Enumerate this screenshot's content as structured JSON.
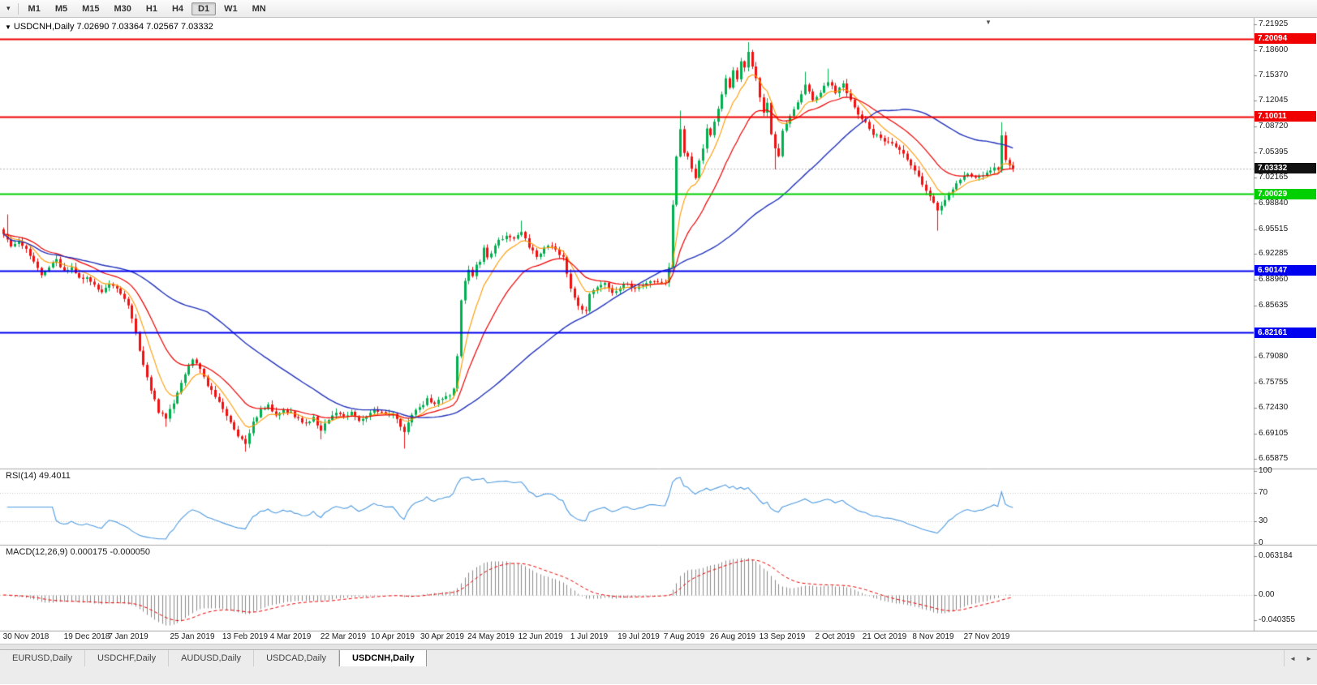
{
  "toolbar": {
    "dropdown_icon": "▾",
    "timeframes": [
      "M1",
      "M5",
      "M15",
      "M30",
      "H1",
      "H4",
      "D1",
      "W1",
      "MN"
    ],
    "active_timeframe": "D1"
  },
  "chart": {
    "symbol_title": "USDCNH,Daily",
    "ohlc_text": "7.02690 7.03364 7.02567 7.03332",
    "shift_marker_icon": "▼",
    "collapse_icon": "▼",
    "y_axis_ticks": [
      "7.21925",
      "7.18600",
      "7.15370",
      "7.12045",
      "7.08720",
      "7.05395",
      "7.02165",
      "6.98840",
      "6.95515",
      "6.92285",
      "6.88960",
      "6.85635",
      "6.79080",
      "6.75755",
      "6.72430",
      "6.69105",
      "6.65875"
    ],
    "price_badges": [
      {
        "label": "7.20094",
        "price": 7.20094,
        "color": "#f00000",
        "current": false
      },
      {
        "label": "7.10011",
        "price": 7.10011,
        "color": "#f00000",
        "current": false
      },
      {
        "label": "7.03332",
        "price": 7.03332,
        "color": "#111111",
        "current": true
      },
      {
        "label": "7.00029",
        "price": 7.00029,
        "color": "#00d000",
        "current": false
      },
      {
        "label": "6.90147",
        "price": 6.90147,
        "color": "#0000f0",
        "current": false
      },
      {
        "label": "6.82161",
        "price": 6.82161,
        "color": "#0000f0",
        "current": false
      }
    ],
    "dates": [
      {
        "label": "30 Nov 2018",
        "i": 6
      },
      {
        "label": "19 Dec 2018",
        "i": 22
      },
      {
        "label": "7 Jan 2019",
        "i": 33
      },
      {
        "label": "25 Jan 2019",
        "i": 50
      },
      {
        "label": "13 Feb 2019",
        "i": 64
      },
      {
        "label": "4 Mar 2019",
        "i": 76
      },
      {
        "label": "22 Mar 2019",
        "i": 90
      },
      {
        "label": "10 Apr 2019",
        "i": 103
      },
      {
        "label": "30 Apr 2019",
        "i": 116
      },
      {
        "label": "24 May 2019",
        "i": 129
      },
      {
        "label": "12 Jun 2019",
        "i": 142
      },
      {
        "label": "1 Jul 2019",
        "i": 155
      },
      {
        "label": "19 Jul 2019",
        "i": 168
      },
      {
        "label": "7 Aug 2019",
        "i": 180
      },
      {
        "label": "26 Aug 2019",
        "i": 193
      },
      {
        "label": "13 Sep 2019",
        "i": 206
      },
      {
        "label": "2 Oct 2019",
        "i": 220
      },
      {
        "label": "21 Oct 2019",
        "i": 233
      },
      {
        "label": "8 Nov 2019",
        "i": 246
      },
      {
        "label": "27 Nov 2019",
        "i": 260
      }
    ]
  },
  "rsi": {
    "name": "RSI(14)",
    "value": "49.4011",
    "ticks": [
      {
        "label": "100",
        "value": 100
      },
      {
        "label": "70",
        "value": 70
      },
      {
        "label": "30",
        "value": 30
      },
      {
        "label": "0",
        "value": 0
      }
    ]
  },
  "macd": {
    "name": "MACD(12,26,9)",
    "values": "0.000175 -0.000050",
    "ticks": [
      {
        "label": "0.063184",
        "value": 0.063184
      },
      {
        "label": "0.00",
        "value": 0
      },
      {
        "label": "-0.040355",
        "value": -0.040355
      }
    ]
  },
  "tabs": {
    "items": [
      "EURUSD,Daily",
      "USDCHF,Daily",
      "AUDUSD,Daily",
      "USDCAD,Daily",
      "USDCNH,Daily"
    ],
    "active": "USDCNH,Daily",
    "scroll_left_icon": "◄",
    "scroll_right_icon": "►"
  },
  "chart_data": {
    "type": "candlestick",
    "symbol": "USDCNH",
    "timeframe": "Daily",
    "last_ohlc": {
      "open": 7.0269,
      "high": 7.03364,
      "low": 7.02567,
      "close": 7.03332
    },
    "price_axis_range": [
      6.65875,
      7.21925
    ],
    "current_price": 7.03332,
    "horizontal_lines": [
      {
        "price": 7.20094,
        "color": "#f00000",
        "role": "resistance"
      },
      {
        "price": 7.10011,
        "color": "#f00000",
        "role": "resistance"
      },
      {
        "price": 7.00029,
        "color": "#00d000",
        "role": "support"
      },
      {
        "price": 6.90147,
        "color": "#0000f0",
        "role": "support"
      },
      {
        "price": 6.82161,
        "color": "#0000f0",
        "role": "support"
      }
    ],
    "candle_count": 268,
    "close_path_anchors": [
      [
        0,
        6.95
      ],
      [
        2,
        6.932
      ],
      [
        4,
        6.938
      ],
      [
        6,
        6.93
      ],
      [
        8,
        6.912
      ],
      [
        10,
        6.896
      ],
      [
        12,
        6.905
      ],
      [
        14,
        6.915
      ],
      [
        16,
        6.9
      ],
      [
        18,
        6.905
      ],
      [
        20,
        6.892
      ],
      [
        22,
        6.893
      ],
      [
        24,
        6.882
      ],
      [
        26,
        6.875
      ],
      [
        28,
        6.885
      ],
      [
        30,
        6.878
      ],
      [
        33,
        6.858
      ],
      [
        35,
        6.82
      ],
      [
        37,
        6.78
      ],
      [
        39,
        6.748
      ],
      [
        41,
        6.72
      ],
      [
        43,
        6.712
      ],
      [
        45,
        6.732
      ],
      [
        47,
        6.758
      ],
      [
        50,
        6.788
      ],
      [
        52,
        6.775
      ],
      [
        54,
        6.752
      ],
      [
        56,
        6.74
      ],
      [
        58,
        6.722
      ],
      [
        60,
        6.705
      ],
      [
        62,
        6.688
      ],
      [
        64,
        6.678
      ],
      [
        66,
        6.705
      ],
      [
        68,
        6.722
      ],
      [
        70,
        6.728
      ],
      [
        72,
        6.713
      ],
      [
        74,
        6.722
      ],
      [
        76,
        6.718
      ],
      [
        78,
        6.71
      ],
      [
        80,
        6.703
      ],
      [
        82,
        6.712
      ],
      [
        84,
        6.695
      ],
      [
        86,
        6.71
      ],
      [
        88,
        6.72
      ],
      [
        90,
        6.712
      ],
      [
        92,
        6.718
      ],
      [
        94,
        6.708
      ],
      [
        96,
        6.712
      ],
      [
        98,
        6.722
      ],
      [
        100,
        6.718
      ],
      [
        103,
        6.715
      ],
      [
        105,
        6.702
      ],
      [
        106,
        6.695
      ],
      [
        108,
        6.715
      ],
      [
        110,
        6.725
      ],
      [
        112,
        6.735
      ],
      [
        114,
        6.73
      ],
      [
        116,
        6.737
      ],
      [
        118,
        6.742
      ],
      [
        119,
        6.748
      ],
      [
        120,
        6.79
      ],
      [
        121,
        6.862
      ],
      [
        122,
        6.89
      ],
      [
        123,
        6.902
      ],
      [
        124,
        6.895
      ],
      [
        125,
        6.908
      ],
      [
        126,
        6.912
      ],
      [
        127,
        6.932
      ],
      [
        128,
        6.92
      ],
      [
        129,
        6.925
      ],
      [
        131,
        6.94
      ],
      [
        133,
        6.948
      ],
      [
        135,
        6.942
      ],
      [
        137,
        6.953
      ],
      [
        139,
        6.932
      ],
      [
        141,
        6.92
      ],
      [
        142,
        6.925
      ],
      [
        144,
        6.935
      ],
      [
        146,
        6.928
      ],
      [
        148,
        6.918
      ],
      [
        150,
        6.88
      ],
      [
        152,
        6.855
      ],
      [
        154,
        6.848
      ],
      [
        155,
        6.872
      ],
      [
        157,
        6.88
      ],
      [
        159,
        6.885
      ],
      [
        161,
        6.872
      ],
      [
        163,
        6.88
      ],
      [
        165,
        6.885
      ],
      [
        167,
        6.878
      ],
      [
        168,
        6.88
      ],
      [
        170,
        6.884
      ],
      [
        172,
        6.888
      ],
      [
        174,
        6.885
      ],
      [
        175,
        6.888
      ],
      [
        176,
        6.905
      ],
      [
        177,
        6.985
      ],
      [
        178,
        7.048
      ],
      [
        179,
        7.082
      ],
      [
        180,
        7.055
      ],
      [
        181,
        7.048
      ],
      [
        182,
        7.032
      ],
      [
        183,
        7.022
      ],
      [
        184,
        7.045
      ],
      [
        185,
        7.06
      ],
      [
        186,
        7.085
      ],
      [
        187,
        7.075
      ],
      [
        188,
        7.095
      ],
      [
        189,
        7.112
      ],
      [
        190,
        7.128
      ],
      [
        191,
        7.148
      ],
      [
        192,
        7.138
      ],
      [
        193,
        7.158
      ],
      [
        194,
        7.15
      ],
      [
        195,
        7.172
      ],
      [
        196,
        7.162
      ],
      [
        197,
        7.185
      ],
      [
        198,
        7.165
      ],
      [
        199,
        7.148
      ],
      [
        200,
        7.125
      ],
      [
        201,
        7.105
      ],
      [
        202,
        7.118
      ],
      [
        203,
        7.078
      ],
      [
        204,
        7.058
      ],
      [
        205,
        7.048
      ],
      [
        206,
        7.08
      ],
      [
        208,
        7.102
      ],
      [
        210,
        7.118
      ],
      [
        212,
        7.142
      ],
      [
        214,
        7.122
      ],
      [
        216,
        7.132
      ],
      [
        218,
        7.146
      ],
      [
        220,
        7.132
      ],
      [
        222,
        7.142
      ],
      [
        224,
        7.122
      ],
      [
        226,
        7.102
      ],
      [
        228,
        7.092
      ],
      [
        230,
        7.078
      ],
      [
        233,
        7.07
      ],
      [
        235,
        7.064
      ],
      [
        237,
        7.058
      ],
      [
        239,
        7.046
      ],
      [
        241,
        7.032
      ],
      [
        243,
        7.012
      ],
      [
        245,
        6.996
      ],
      [
        246,
        6.99
      ],
      [
        247,
        6.978
      ],
      [
        248,
        6.985
      ],
      [
        249,
        6.992
      ],
      [
        250,
        7.002
      ],
      [
        251,
        7.008
      ],
      [
        253,
        7.018
      ],
      [
        255,
        7.026
      ],
      [
        257,
        7.02
      ],
      [
        259,
        7.026
      ],
      [
        261,
        7.03
      ],
      [
        262,
        7.036
      ],
      [
        263,
        7.032
      ],
      [
        264,
        7.075
      ],
      [
        265,
        7.045
      ],
      [
        266,
        7.036
      ],
      [
        267,
        7.0333
      ]
    ],
    "wick_extremes": [
      {
        "i": 1,
        "h": 6.974
      },
      {
        "i": 43,
        "l": 6.7
      },
      {
        "i": 64,
        "l": 6.668
      },
      {
        "i": 84,
        "l": 6.684
      },
      {
        "i": 106,
        "l": 6.672
      },
      {
        "i": 137,
        "h": 6.966
      },
      {
        "i": 179,
        "h": 7.108
      },
      {
        "i": 197,
        "h": 7.1963
      },
      {
        "i": 204,
        "l": 7.032
      },
      {
        "i": 212,
        "h": 7.158
      },
      {
        "i": 218,
        "h": 7.162
      },
      {
        "i": 247,
        "l": 6.953
      },
      {
        "i": 264,
        "h": 7.093
      }
    ],
    "moving_averages": [
      {
        "color": "#ff9900",
        "period": 8,
        "type": "ema"
      },
      {
        "color": "#ee0000",
        "period": 20,
        "type": "ema"
      },
      {
        "color": "#2233bb",
        "period": 55,
        "type": "sma"
      }
    ],
    "rsi": {
      "period": 14,
      "current": 49.4011,
      "range": [
        0,
        100
      ],
      "levels": [
        70,
        30
      ]
    },
    "macd": {
      "fast": 12,
      "slow": 26,
      "signal": 9,
      "current_macd": 0.000175,
      "current_signal": -5e-05,
      "axis_max": 0.063184,
      "axis_min": -0.040355
    },
    "colors": {
      "up": "#00b050",
      "down": "#f01010",
      "rsi_line": "#4f9be0",
      "macd_hist": "#8a8a8a",
      "macd_signal": "#ee0000",
      "current_price_line": "#b4b4b4",
      "separator": "#a8a8a8"
    }
  }
}
